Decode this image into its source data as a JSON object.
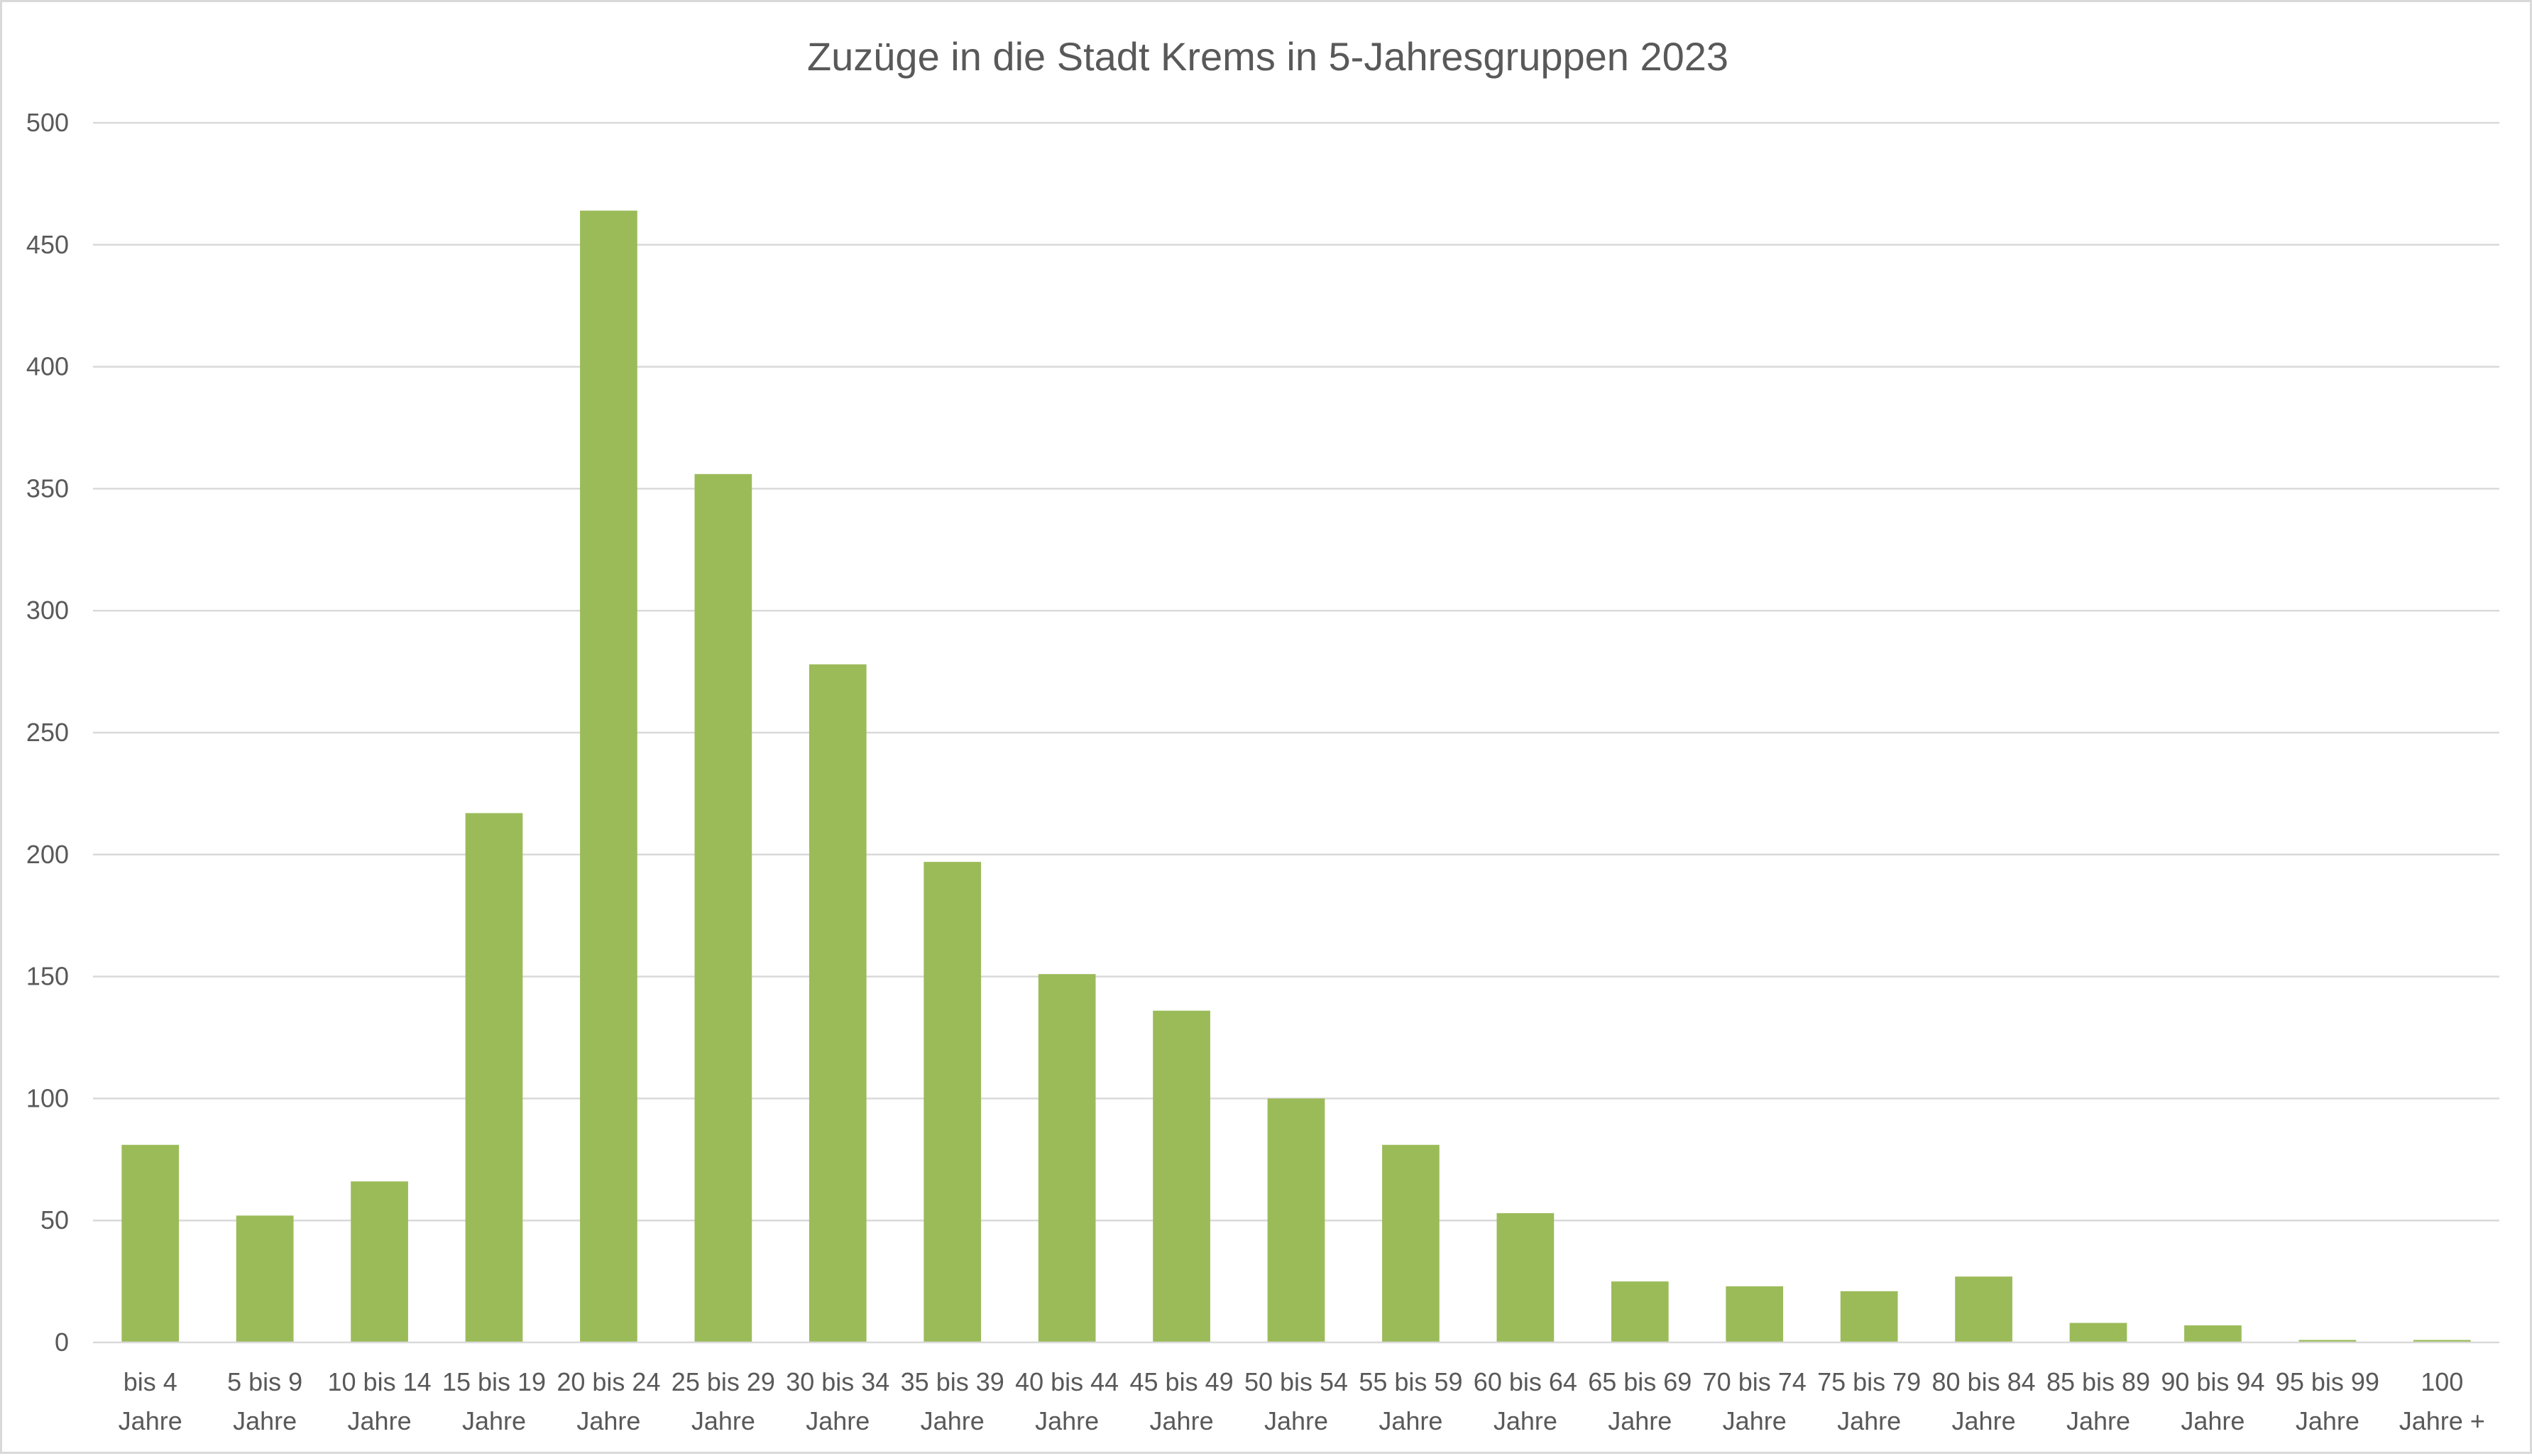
{
  "chart_data": {
    "type": "bar",
    "title": "Zuzüge in die Stadt Krems in 5-Jahresgruppen 2023",
    "xlabel": "",
    "ylabel": "",
    "ylim": [
      0,
      500
    ],
    "yticks": [
      0,
      50,
      100,
      150,
      200,
      250,
      300,
      350,
      400,
      450,
      500
    ],
    "grid": true,
    "legend": "none",
    "bar_color": "#9bbb59",
    "categories": [
      [
        "bis 4",
        "Jahre"
      ],
      [
        "5 bis 9",
        "Jahre"
      ],
      [
        "10 bis 14",
        "Jahre"
      ],
      [
        "15 bis 19",
        "Jahre"
      ],
      [
        "20 bis 24",
        "Jahre"
      ],
      [
        "25 bis 29",
        "Jahre"
      ],
      [
        "30 bis 34",
        "Jahre"
      ],
      [
        "35 bis 39",
        "Jahre"
      ],
      [
        "40 bis 44",
        "Jahre"
      ],
      [
        "45 bis 49",
        "Jahre"
      ],
      [
        "50 bis 54",
        "Jahre"
      ],
      [
        "55 bis 59",
        "Jahre"
      ],
      [
        "60 bis 64",
        "Jahre"
      ],
      [
        "65 bis 69",
        "Jahre"
      ],
      [
        "70 bis 74",
        "Jahre"
      ],
      [
        "75 bis 79",
        "Jahre"
      ],
      [
        "80 bis 84",
        "Jahre"
      ],
      [
        "85 bis 89",
        "Jahre"
      ],
      [
        "90 bis 94",
        "Jahre"
      ],
      [
        "95 bis 99",
        "Jahre"
      ],
      [
        "100",
        "Jahre +"
      ]
    ],
    "values": [
      81,
      52,
      66,
      217,
      464,
      356,
      278,
      197,
      151,
      136,
      100,
      81,
      53,
      25,
      23,
      21,
      27,
      8,
      7,
      1,
      1
    ]
  }
}
